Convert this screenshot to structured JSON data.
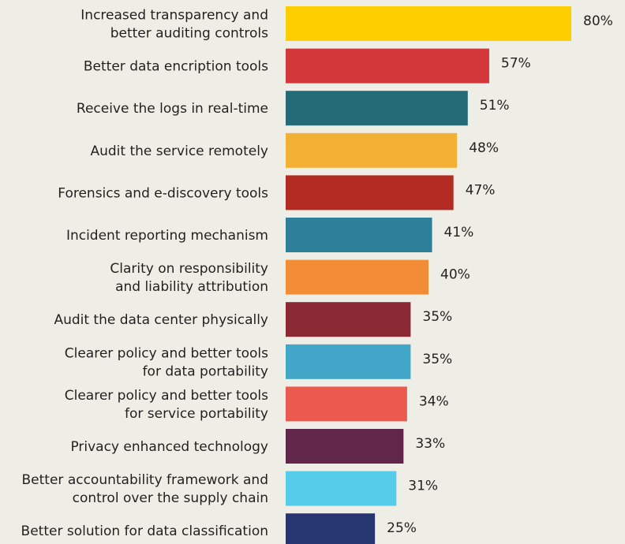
{
  "chart_data": {
    "type": "bar",
    "orientation": "horizontal",
    "title": "",
    "xlabel": "",
    "ylabel": "",
    "xlim": [
      0,
      100
    ],
    "grid": false,
    "legend": "none",
    "value_suffix": "%",
    "bars": [
      {
        "label": [
          "Increased transparency and",
          "better auditing controls"
        ],
        "value": 80,
        "color": "#fecf00"
      },
      {
        "label": [
          "Better data encription tools"
        ],
        "value": 57,
        "color": "#d3373a"
      },
      {
        "label": [
          "Receive the logs in real-time"
        ],
        "value": 51,
        "color": "#246a77"
      },
      {
        "label": [
          "Audit the service remotely"
        ],
        "value": 48,
        "color": "#f2b035"
      },
      {
        "label": [
          "Forensics and e-discovery tools"
        ],
        "value": 47,
        "color": "#b32b22"
      },
      {
        "label": [
          "Incident reporting mechanism"
        ],
        "value": 41,
        "color": "#2e7f9a"
      },
      {
        "label": [
          "Clarity on responsibility",
          "and liability attribution"
        ],
        "value": 40,
        "color": "#f38c36"
      },
      {
        "label": [
          "Audit the data center physically"
        ],
        "value": 35,
        "color": "#8a2933"
      },
      {
        "label": [
          "Clearer policy and better tools",
          "for data  portability"
        ],
        "value": 35,
        "color": "#42a6c9"
      },
      {
        "label": [
          "Clearer policy and better tools",
          "for service portability"
        ],
        "value": 34,
        "color": "#ea5a4f"
      },
      {
        "label": [
          "Privacy enhanced technology"
        ],
        "value": 33,
        "color": "#62264b"
      },
      {
        "label": [
          "Better accountability framework and",
          "control over the supply chain"
        ],
        "value": 31,
        "color": "#55cce9"
      },
      {
        "label": [
          "Better solution for data classification"
        ],
        "value": 25,
        "color": "#273570"
      }
    ]
  }
}
